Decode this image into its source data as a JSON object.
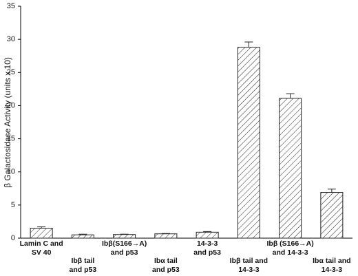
{
  "chart_data": {
    "type": "bar",
    "y_label": "β Galactosidase Activity (units x 10)",
    "categories": [
      "Lamin C and\nSV 40",
      "Ibβ tail\nand p53",
      "Ibβ(S166→A)\nand p53",
      "Ibα tail\nand p53",
      "14-3-3\nand p53",
      "Ibβ tail and\n14-3-3",
      "Ibβ (S166→A)\nand 14-3-3",
      "Ibα tail and\n14-3-3"
    ],
    "values": [
      1.5,
      0.5,
      0.55,
      0.65,
      0.9,
      28.8,
      21.1,
      6.9
    ],
    "errors": [
      0.2,
      0.1,
      0.05,
      0.05,
      0.1,
      0.8,
      0.7,
      0.5
    ],
    "color": "#222222",
    "ylim": [
      0,
      35
    ],
    "yticks": [
      0,
      5,
      10,
      15,
      20,
      25,
      30,
      35
    ]
  }
}
